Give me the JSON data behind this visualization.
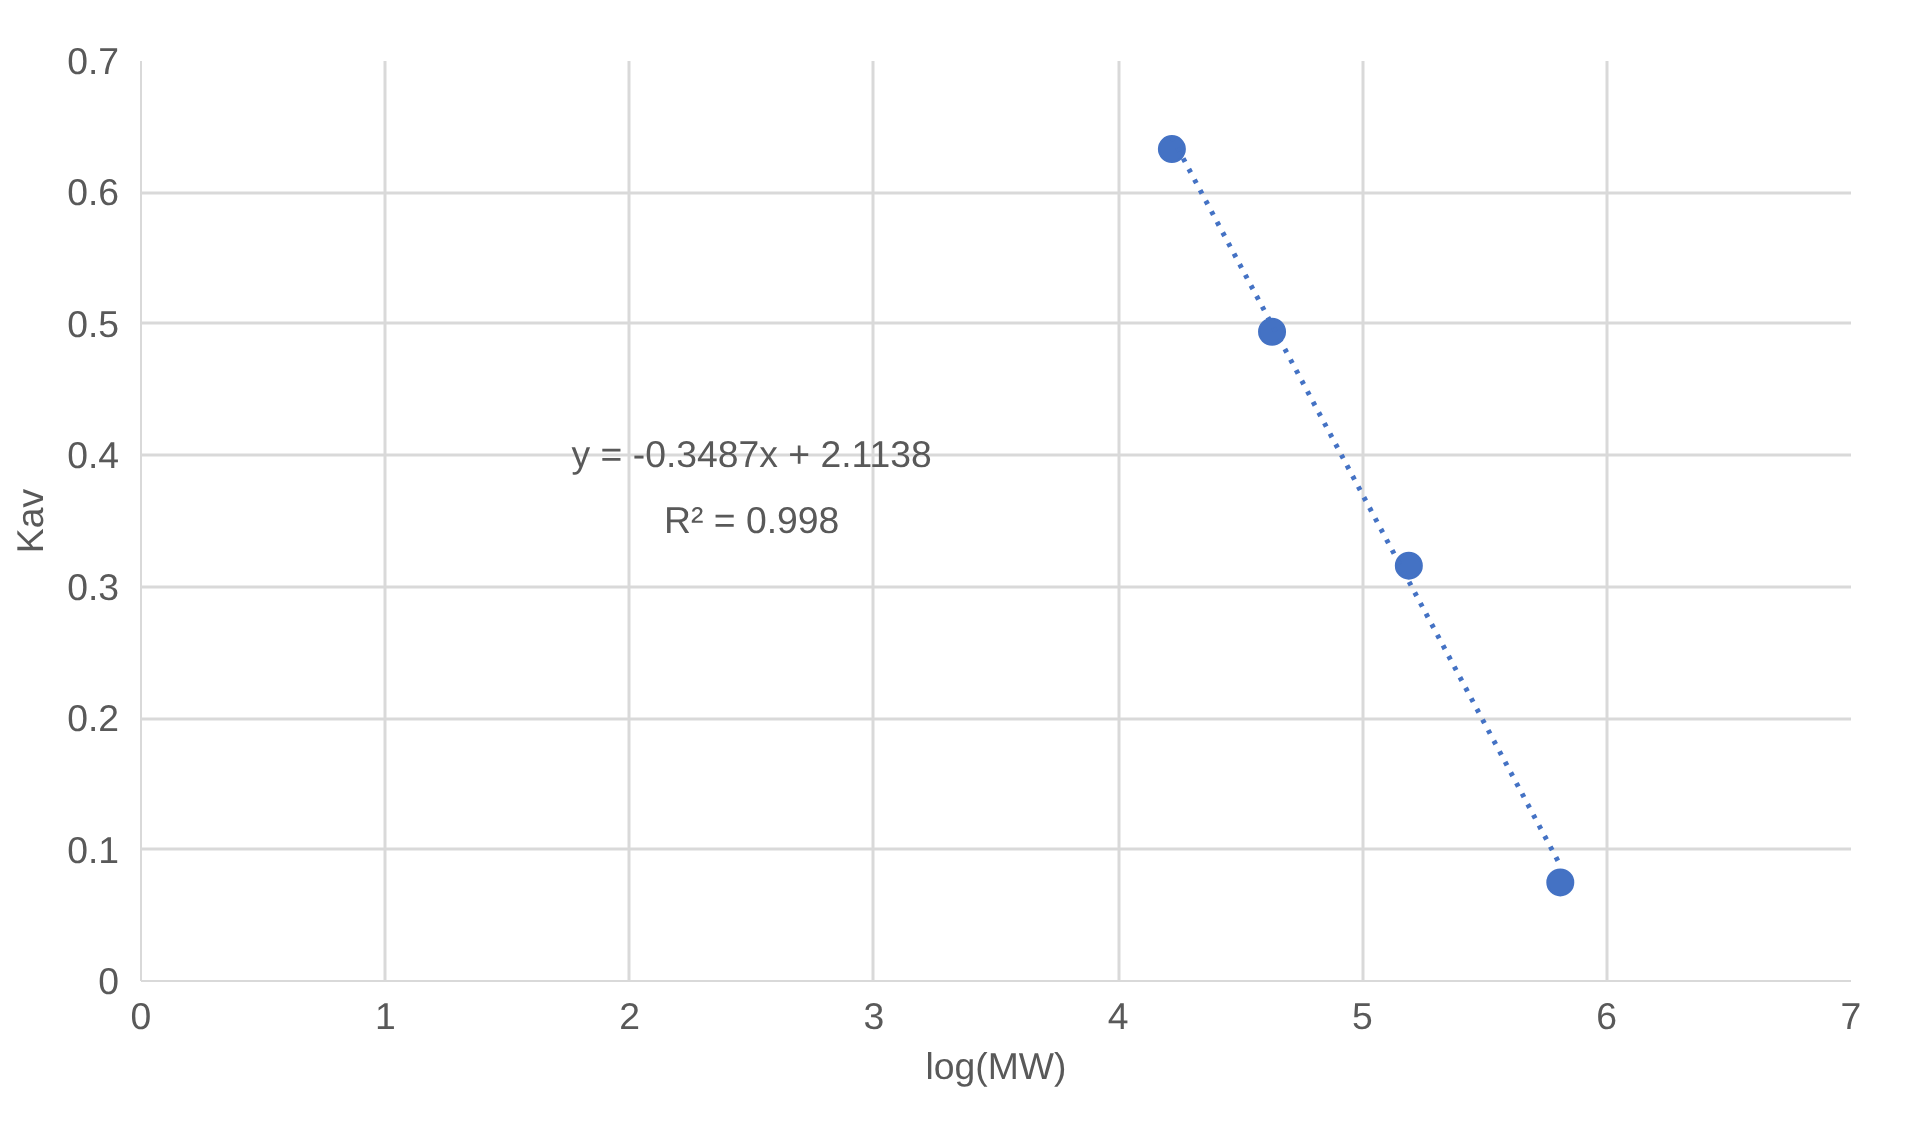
{
  "chart_data": {
    "type": "scatter",
    "xlabel": "log(MW)",
    "ylabel": "Kav",
    "xlim": [
      0,
      7
    ],
    "xticks": [
      0,
      1,
      2,
      3,
      4,
      5,
      6,
      7
    ],
    "ylim": [
      0,
      0.7
    ],
    "yticks": [
      0,
      0.1,
      0.2,
      0.3,
      0.4,
      0.5,
      0.6,
      0.7
    ],
    "grid": true,
    "marker": "circle",
    "series": [
      {
        "color": "#4472c4",
        "x": [
          4.22,
          4.63,
          5.19,
          5.81
        ],
        "values": [
          0.633,
          0.494,
          0.316,
          0.075
        ]
      },
      {
        "type": "line",
        "color": "#4472c4",
        "line_style": "dotted",
        "marker": "none",
        "x": [
          4.22,
          5.81
        ],
        "values": [
          0.642,
          0.088
        ]
      }
    ],
    "annotations": [
      "y = -0.3487x + 2.1138",
      "R² = 0.998"
    ]
  }
}
